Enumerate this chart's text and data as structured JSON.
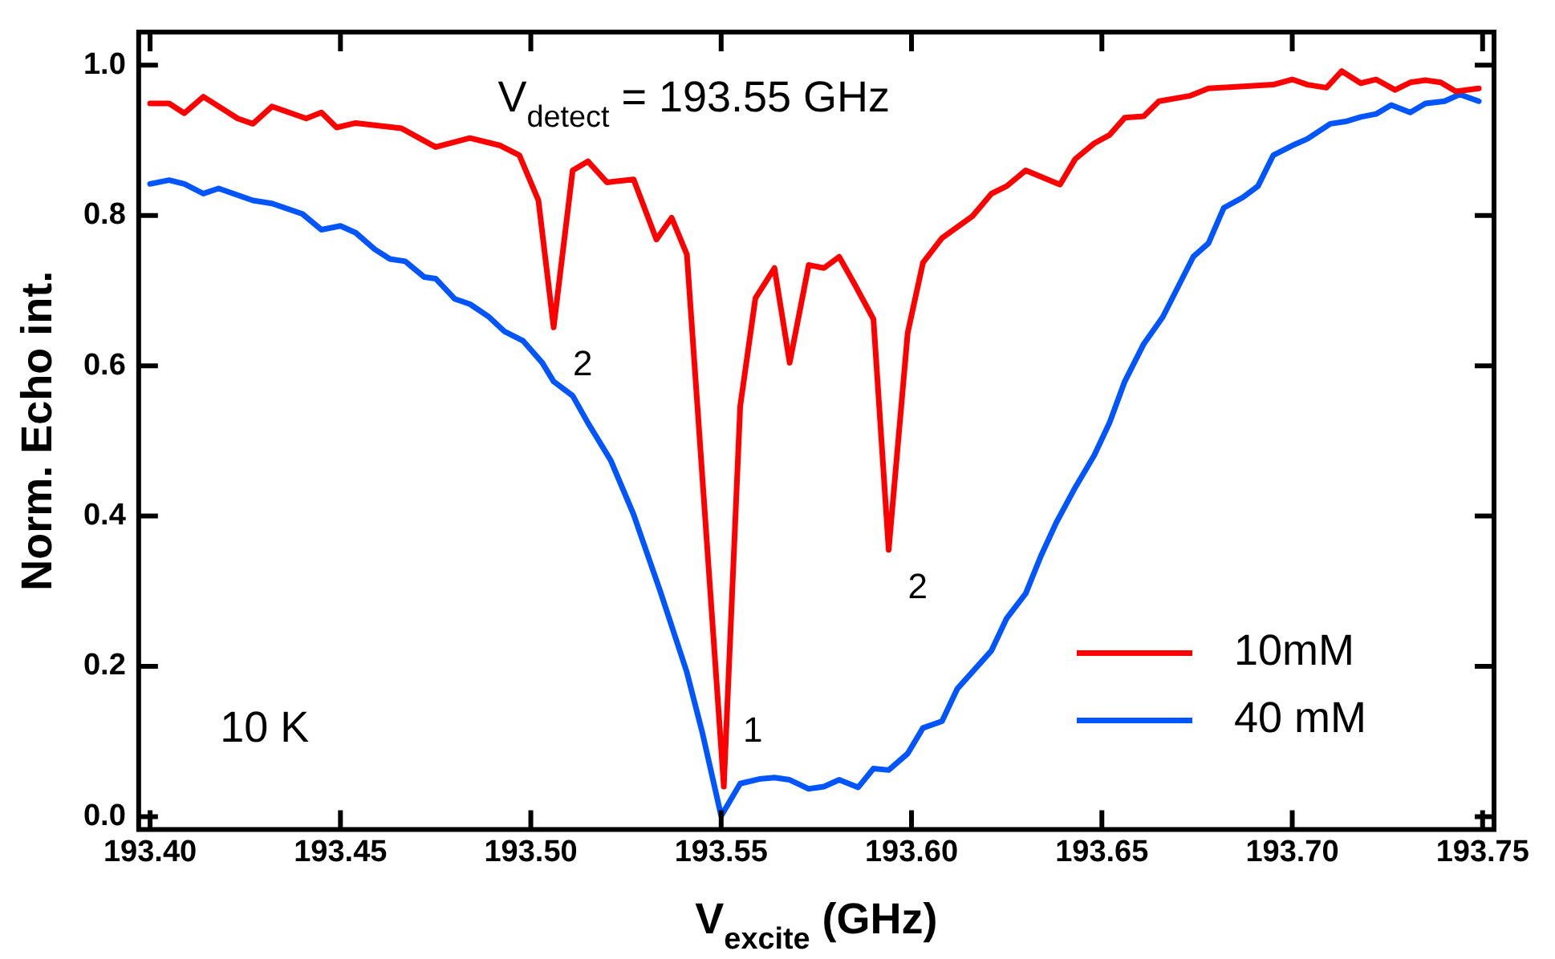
{
  "chart_data": {
    "type": "line",
    "xlabel": "V$_{excite}$ (GHz)",
    "ylabel": "Norm. Echo int.",
    "xlim": [
      193.397,
      193.753
    ],
    "ylim": [
      -0.017,
      1.044
    ],
    "xticks": [
      {
        "value": 193.4,
        "label": "193.40"
      },
      {
        "value": 193.45,
        "label": "193.45"
      },
      {
        "value": 193.5,
        "label": "193.50"
      },
      {
        "value": 193.55,
        "label": "193.55"
      },
      {
        "value": 193.6,
        "label": "193.60"
      },
      {
        "value": 193.65,
        "label": "193.65"
      },
      {
        "value": 193.7,
        "label": "193.70"
      },
      {
        "value": 193.75,
        "label": "193.75"
      }
    ],
    "yticks": [
      {
        "value": 0,
        "label": "0.0"
      },
      {
        "value": 0.2,
        "label": "0.2"
      },
      {
        "value": 0.4,
        "label": "0.4"
      },
      {
        "value": 0.6,
        "label": "0.6"
      },
      {
        "value": 0.8,
        "label": "0.8"
      },
      {
        "value": 1,
        "label": "1.0"
      }
    ],
    "grid": false,
    "legend": "bottom right",
    "marker": "none",
    "line_style": "solid",
    "annotations": [
      "V$_{detect}$ = 193.55 GHz",
      "10 K",
      {
        "text": "2",
        "x": 193.506,
        "y": 0.651
      },
      {
        "text": "1",
        "x": 193.5507,
        "y": 0.04
      },
      {
        "text": "2",
        "x": 193.594,
        "y": 0.355
      }
    ],
    "series": [
      {
        "name": "10mM",
        "color": "#ff0000",
        "x": [
          193.4,
          193.405,
          193.409,
          193.414,
          193.423,
          193.427,
          193.432,
          193.441,
          193.445,
          193.449,
          193.454,
          193.466,
          193.475,
          193.484,
          193.492,
          193.497,
          193.502,
          193.506,
          193.511,
          193.515,
          193.52,
          193.527,
          193.533,
          193.537,
          193.541,
          193.5507,
          193.555,
          193.559,
          193.564,
          193.568,
          193.573,
          193.577,
          193.581,
          193.585,
          193.59,
          193.594,
          193.599,
          193.603,
          193.608,
          193.616,
          193.621,
          193.625,
          193.63,
          193.639,
          193.643,
          193.648,
          193.652,
          193.656,
          193.661,
          193.665,
          193.673,
          193.678,
          193.688,
          193.695,
          193.7,
          193.704,
          193.709,
          193.713,
          193.718,
          193.722,
          193.727,
          193.731,
          193.735,
          193.739,
          193.743,
          193.749
        ],
        "values": [
          0.949,
          0.949,
          0.936,
          0.958,
          0.929,
          0.922,
          0.945,
          0.929,
          0.937,
          0.917,
          0.923,
          0.916,
          0.891,
          0.903,
          0.893,
          0.88,
          0.82,
          0.651,
          0.86,
          0.872,
          0.844,
          0.848,
          0.768,
          0.797,
          0.748,
          0.04,
          0.546,
          0.69,
          0.73,
          0.604,
          0.734,
          0.73,
          0.745,
          0.709,
          0.662,
          0.355,
          0.644,
          0.737,
          0.77,
          0.799,
          0.829,
          0.839,
          0.86,
          0.841,
          0.875,
          0.896,
          0.907,
          0.93,
          0.932,
          0.952,
          0.959,
          0.969,
          0.972,
          0.974,
          0.981,
          0.974,
          0.97,
          0.992,
          0.976,
          0.981,
          0.967,
          0.977,
          0.98,
          0.977,
          0.965,
          0.969
        ]
      },
      {
        "name": "40 mM",
        "color": "#0055ff",
        "x": [
          193.4,
          193.405,
          193.409,
          193.414,
          193.418,
          193.427,
          193.432,
          193.44,
          193.445,
          193.45,
          193.454,
          193.459,
          193.463,
          193.467,
          193.472,
          193.475,
          193.48,
          193.484,
          193.489,
          193.493,
          193.498,
          193.503,
          193.506,
          193.511,
          193.515,
          193.521,
          193.527,
          193.534,
          193.541,
          193.545,
          193.55,
          193.555,
          193.56,
          193.564,
          193.568,
          193.573,
          193.577,
          193.581,
          193.586,
          193.59,
          193.594,
          193.599,
          193.603,
          193.608,
          193.612,
          193.621,
          193.625,
          193.63,
          193.634,
          193.638,
          193.643,
          193.648,
          193.652,
          193.656,
          193.661,
          193.666,
          193.674,
          193.678,
          193.682,
          193.687,
          193.691,
          193.695,
          193.7,
          193.704,
          193.71,
          193.714,
          193.718,
          193.722,
          193.726,
          193.731,
          193.735,
          193.74,
          193.744,
          193.749
        ],
        "values": [
          0.842,
          0.847,
          0.842,
          0.829,
          0.836,
          0.82,
          0.816,
          0.802,
          0.781,
          0.786,
          0.777,
          0.755,
          0.742,
          0.739,
          0.718,
          0.716,
          0.689,
          0.682,
          0.665,
          0.646,
          0.633,
          0.604,
          0.579,
          0.56,
          0.524,
          0.474,
          0.402,
          0.3,
          0.192,
          0.113,
          0.001,
          0.044,
          0.05,
          0.052,
          0.049,
          0.037,
          0.04,
          0.049,
          0.039,
          0.064,
          0.062,
          0.084,
          0.118,
          0.127,
          0.17,
          0.221,
          0.264,
          0.297,
          0.347,
          0.391,
          0.438,
          0.481,
          0.524,
          0.579,
          0.629,
          0.665,
          0.745,
          0.763,
          0.81,
          0.824,
          0.839,
          0.88,
          0.893,
          0.902,
          0.922,
          0.925,
          0.931,
          0.935,
          0.947,
          0.937,
          0.949,
          0.952,
          0.961,
          0.952
        ]
      }
    ]
  }
}
